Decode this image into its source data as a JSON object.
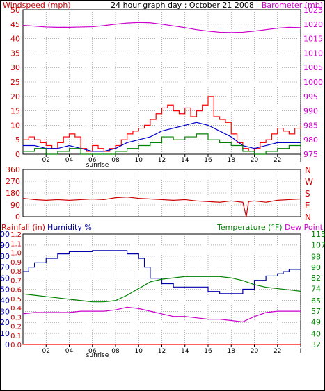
{
  "panel_top": {
    "title": "24 hour graph day : October 21 2008",
    "left_label": "Windspeed (mph)",
    "right_label": "Barometer (mb)"
  },
  "panel_mid": {
    "right_label_letters": [
      "N",
      "W",
      "S",
      "E",
      "N"
    ]
  },
  "panel_bot": {
    "label_rainfall": "Rainfall (in)",
    "label_humidity": "Humidity %",
    "label_temperature": "Temperature (°F)",
    "label_dewpoint": "Dew Point"
  },
  "x_marker": "sunrise",
  "colors": {
    "wind": "#ff0000",
    "gust": "#cc0000",
    "wind_avg": "#0000cc",
    "wind_low": "#008000",
    "barometer": "#cc00cc",
    "direction": "#cc0000",
    "humidity": "#0000aa",
    "temperature": "#008000",
    "dewpoint": "#cc00cc",
    "rainfall": "#ff0000",
    "grid": "#808080"
  },
  "chart_data": [
    {
      "type": "line",
      "id": "wind-barometer",
      "title": "24 hour graph day : October 21 2008",
      "ylabel": "Windspeed (mph)",
      "y2label": "Barometer (mb)",
      "ylim": [
        0,
        50
      ],
      "y2lim": [
        975,
        1025
      ],
      "yticks": [
        0,
        5,
        10,
        15,
        20,
        25,
        30,
        35,
        40,
        45,
        50
      ],
      "y2ticks": [
        975,
        980,
        985,
        990,
        995,
        1000,
        1005,
        1010,
        1015,
        1020,
        1025
      ],
      "xlim": [
        0,
        24
      ],
      "xticks": [
        "02",
        "04",
        "06",
        "08",
        "10",
        "12",
        "14",
        "16",
        "18",
        "20",
        "22",
        "I"
      ],
      "xtick_pos": [
        2,
        4,
        6,
        8,
        10,
        12,
        14,
        16,
        18,
        20,
        22,
        24
      ],
      "sunrise_x": 6,
      "grid": true,
      "series": [
        {
          "name": "Windspeed (mph)",
          "axis": "left",
          "color": "wind",
          "style": "step",
          "x": [
            0,
            0.5,
            1,
            1.5,
            2,
            2.5,
            3,
            3.5,
            4,
            4.5,
            5,
            5.5,
            6,
            6.5,
            7,
            7.5,
            8,
            8.5,
            9,
            9.5,
            10,
            10.5,
            11,
            11.5,
            12,
            12.5,
            13,
            13.5,
            14,
            14.5,
            15,
            15.5,
            16,
            16.5,
            17,
            17.5,
            18,
            18.5,
            19,
            19.5,
            20,
            20.5,
            21,
            21.5,
            22,
            22.5,
            23,
            23.5,
            24
          ],
          "values": [
            5,
            6,
            5,
            4,
            3,
            2,
            4,
            6,
            7,
            6,
            2,
            1,
            3,
            2,
            1,
            2,
            3,
            5,
            7,
            8,
            9,
            10,
            12,
            14,
            16,
            17,
            15,
            14,
            16,
            13,
            15,
            17,
            20,
            13,
            12,
            11,
            7,
            4,
            2,
            1,
            2,
            4,
            5,
            7,
            9,
            8,
            7,
            9,
            10
          ]
        },
        {
          "name": "Average wind",
          "axis": "left",
          "color": "wind_avg",
          "style": "line",
          "x": [
            0,
            1,
            2,
            3,
            4,
            5,
            6,
            7,
            8,
            9,
            10,
            11,
            12,
            13,
            14,
            15,
            16,
            17,
            18,
            19,
            20,
            21,
            22,
            23,
            24
          ],
          "values": [
            3,
            3,
            2,
            2,
            3,
            2,
            1,
            1,
            2,
            4,
            5,
            6,
            8,
            9,
            10,
            11,
            10,
            8,
            6,
            3,
            2,
            3,
            4,
            4,
            4
          ]
        },
        {
          "name": "Wind lull",
          "axis": "left",
          "color": "wind_low",
          "style": "step",
          "x": [
            0,
            1,
            2,
            3,
            4,
            5,
            6,
            7,
            8,
            9,
            10,
            11,
            12,
            13,
            14,
            15,
            16,
            17,
            18,
            19,
            20,
            21,
            22,
            23,
            24
          ],
          "values": [
            1,
            2,
            0,
            1,
            2,
            0,
            0,
            0,
            1,
            2,
            3,
            4,
            6,
            5,
            6,
            7,
            5,
            4,
            3,
            1,
            0,
            1,
            2,
            3,
            4
          ]
        },
        {
          "name": "Barometer (mb)",
          "axis": "right",
          "color": "barometer",
          "style": "line",
          "x": [
            0,
            1,
            2,
            3,
            4,
            5,
            6,
            7,
            8,
            9,
            10,
            11,
            12,
            13,
            14,
            15,
            16,
            17,
            18,
            19,
            20,
            21,
            22,
            23,
            24
          ],
          "values": [
            1019.6,
            1019.3,
            1019.0,
            1018.9,
            1018.9,
            1019.0,
            1019.1,
            1019.5,
            1020.0,
            1020.4,
            1020.6,
            1020.5,
            1020.0,
            1019.4,
            1018.8,
            1018.1,
            1017.6,
            1017.2,
            1017.1,
            1017.2,
            1017.6,
            1018.1,
            1018.6,
            1018.9,
            1018.8
          ]
        }
      ]
    },
    {
      "type": "line",
      "id": "wind-direction",
      "ylabel": "",
      "ylim": [
        0,
        360
      ],
      "yticks": [
        0,
        90,
        180,
        270,
        360
      ],
      "y2ticks": [
        "N",
        "W",
        "S",
        "E",
        "N"
      ],
      "xlim": [
        0,
        24
      ],
      "grid": true,
      "series": [
        {
          "name": "Wind direction",
          "color": "direction",
          "style": "line",
          "x": [
            0,
            1,
            2,
            3,
            4,
            5,
            6,
            7,
            8,
            9,
            10,
            11,
            12,
            13,
            14,
            15,
            16,
            17,
            18,
            19,
            19.3,
            19.5,
            20,
            21,
            22,
            23,
            24
          ],
          "values": [
            140,
            130,
            125,
            130,
            125,
            130,
            135,
            130,
            145,
            150,
            140,
            135,
            130,
            125,
            130,
            120,
            115,
            110,
            120,
            110,
            0,
            115,
            120,
            110,
            125,
            130,
            135
          ]
        }
      ]
    },
    {
      "type": "line",
      "id": "temp-humidity",
      "ylabel": "Humidity %",
      "y2label": "Temperature (°F)",
      "ylim": [
        0,
        100
      ],
      "yticks": [
        0,
        10,
        20,
        30,
        40,
        50,
        60,
        70,
        80,
        90,
        100
      ],
      "rainfall_ticks": [
        "0.0",
        "0.1",
        "0.2",
        "0.3",
        "0.4",
        "0.5",
        "0.6",
        "0.7",
        "0.8",
        "0.9",
        "1.0",
        "1.1",
        "1.2"
      ],
      "rainfall_lim": [
        0,
        1.2
      ],
      "y2lim": [
        32,
        115
      ],
      "y2ticks": [
        32,
        40,
        49,
        57,
        65,
        74,
        82,
        90,
        98,
        107,
        115
      ],
      "xlim": [
        0,
        24
      ],
      "xticks": [
        "02",
        "04",
        "06",
        "08",
        "10",
        "12",
        "14",
        "16",
        "18",
        "20",
        "22",
        "I"
      ],
      "xtick_pos": [
        2,
        4,
        6,
        8,
        10,
        12,
        14,
        16,
        18,
        20,
        22,
        24
      ],
      "sunrise_x": 6,
      "grid": true,
      "series": [
        {
          "name": "Humidity %",
          "axis": "left",
          "color": "humidity",
          "style": "step",
          "x": [
            0,
            0.5,
            1,
            2,
            3,
            4,
            5,
            6,
            7,
            8,
            9,
            10,
            10.5,
            11,
            12,
            13,
            14,
            15,
            16,
            17,
            18,
            19,
            20,
            21,
            22,
            22.5,
            23,
            24
          ],
          "values": [
            66,
            70,
            74,
            78,
            82,
            84,
            84,
            85,
            85,
            85,
            82,
            78,
            70,
            60,
            55,
            52,
            52,
            52,
            48,
            46,
            46,
            50,
            58,
            62,
            64,
            66,
            68,
            68
          ]
        },
        {
          "name": "Temperature (°F)",
          "axis": "right",
          "color": "temperature",
          "style": "line",
          "x": [
            0,
            1,
            2,
            3,
            4,
            5,
            6,
            7,
            8,
            9,
            10,
            11,
            12,
            13,
            14,
            15,
            16,
            17,
            18,
            19,
            20,
            21,
            22,
            23,
            24
          ],
          "values": [
            70,
            69,
            68,
            67,
            66,
            65,
            64,
            64,
            65,
            69,
            74,
            79,
            81,
            82,
            83,
            83,
            83,
            83,
            82,
            80,
            77,
            75,
            74,
            73,
            72
          ]
        },
        {
          "name": "Dew Point",
          "axis": "right",
          "color": "dewpoint",
          "style": "line",
          "x": [
            0,
            1,
            2,
            3,
            4,
            5,
            6,
            7,
            8,
            9,
            10,
            11,
            12,
            13,
            14,
            15,
            16,
            17,
            18,
            19,
            20,
            21,
            22,
            23,
            24
          ],
          "values": [
            55,
            56,
            56,
            56,
            56,
            57,
            57,
            57,
            58,
            60,
            59,
            57,
            55,
            53,
            53,
            52,
            51,
            51,
            50,
            49,
            53,
            56,
            57,
            57,
            57
          ]
        },
        {
          "name": "Rainfall (in)",
          "axis": "rainfall",
          "color": "rainfall",
          "style": "line",
          "x": [
            0,
            24
          ],
          "values": [
            0,
            0
          ]
        }
      ]
    }
  ]
}
